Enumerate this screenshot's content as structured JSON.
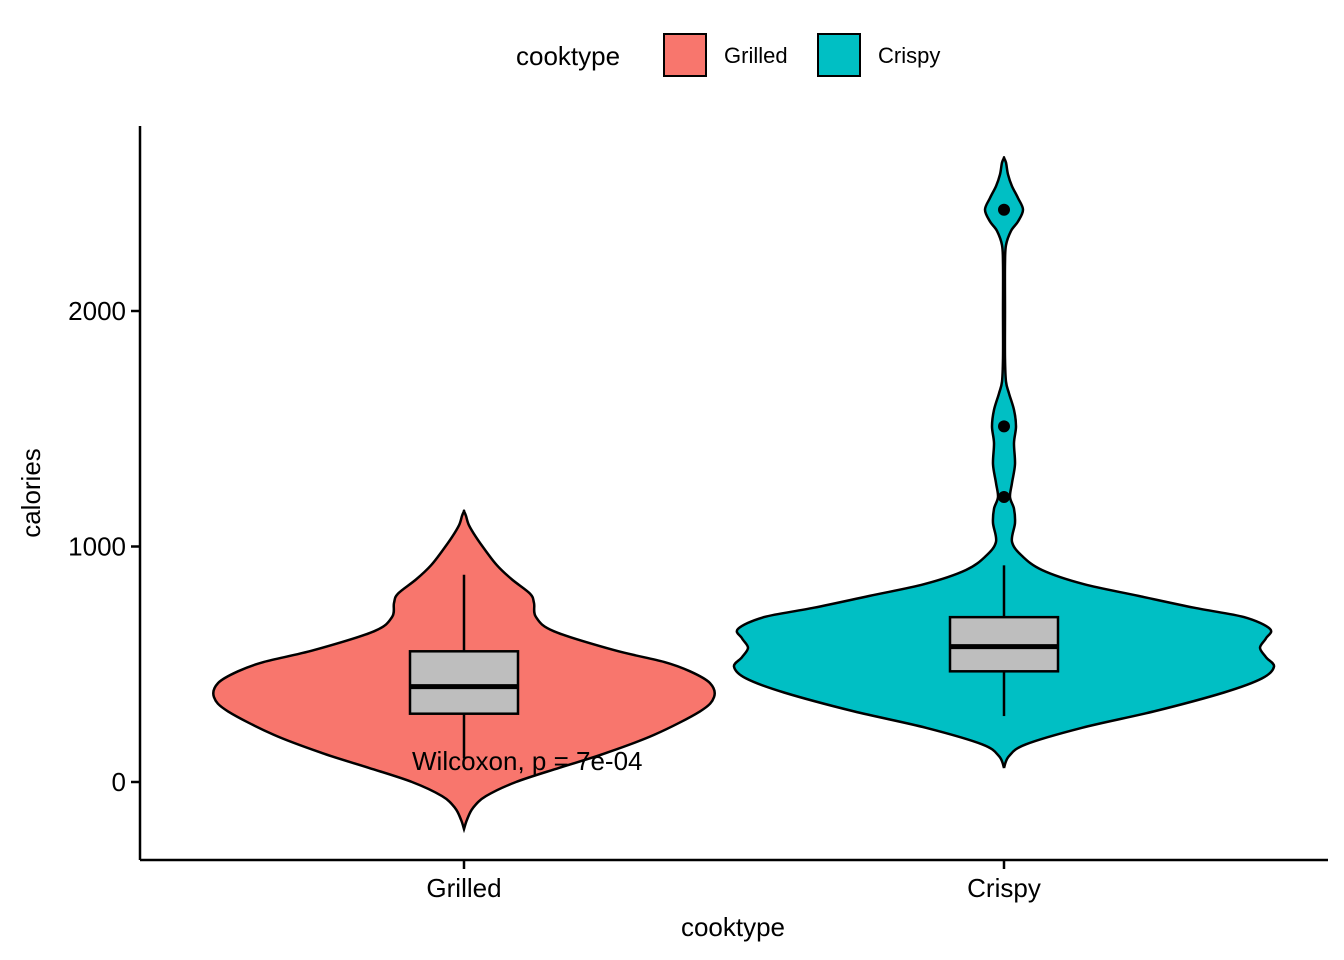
{
  "chart_data": {
    "type": "violin",
    "xlabel": "cooktype",
    "ylabel": "calories",
    "categories": [
      "Grilled",
      "Crispy"
    ],
    "ylim": [
      -330,
      2800
    ],
    "yticks": [
      0,
      1000,
      2000
    ],
    "grid": false,
    "legend": {
      "title": "cooktype",
      "position": "top",
      "entries": [
        {
          "label": "Grilled",
          "color": "#F8766D"
        },
        {
          "label": "Crispy",
          "color": "#00BFC4"
        }
      ]
    },
    "boxes": [
      {
        "category": "Grilled",
        "whisker_low": 100,
        "q1": 290,
        "median": 405,
        "q3": 555,
        "whisker_high": 880
      },
      {
        "category": "Crispy",
        "whisker_low": 280,
        "q1": 470,
        "median": 575,
        "q3": 700,
        "whisker_high": 920
      }
    ],
    "outliers": [
      {
        "category": "Crispy",
        "y": 2430
      },
      {
        "category": "Crispy",
        "y": 1510
      },
      {
        "category": "Crispy",
        "y": 1210
      }
    ],
    "annotation": "Wilcoxon, p = 7e-04",
    "colors": {
      "Grilled": "#F8766D",
      "Crispy": "#00BFC4",
      "box": "#BEBEBE"
    }
  }
}
